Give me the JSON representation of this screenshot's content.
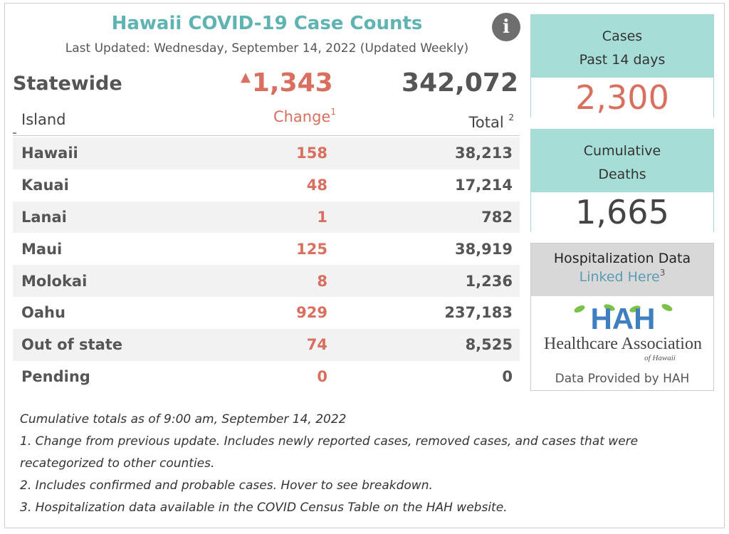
{
  "header": {
    "title": "Hawaii COVID-19 Case Counts",
    "subtitle": "Last Updated: Wednesday, September 14, 2022 (Updated Weekly)",
    "info_label": "i"
  },
  "statewide": {
    "label": "Statewide",
    "change": "1,343",
    "change_arrow": "▲",
    "total": "342,072"
  },
  "table": {
    "col_island": "Island",
    "col_change": "Change",
    "col_change_sup": "1",
    "col_total": "Total",
    "col_total_sup": "2",
    "rows": [
      {
        "name": "Hawaii",
        "change": "158",
        "total": "38,213"
      },
      {
        "name": "Kauai",
        "change": "48",
        "total": "17,214"
      },
      {
        "name": "Lanai",
        "change": "1",
        "total": "782"
      },
      {
        "name": "Maui",
        "change": "125",
        "total": "38,919"
      },
      {
        "name": "Molokai",
        "change": "8",
        "total": "1,236"
      },
      {
        "name": "Oahu",
        "change": "929",
        "total": "237,183"
      },
      {
        "name": "Out of state",
        "change": "74",
        "total": "8,525"
      },
      {
        "name": "Pending",
        "change": "0",
        "total": "0"
      }
    ]
  },
  "cards": {
    "cases_line1": "Cases",
    "cases_line2": "Past 14 days",
    "cases_value": "2,300",
    "deaths_line1": "Cumulative",
    "deaths_line2": "Deaths",
    "deaths_value": "1,665"
  },
  "hospitalization": {
    "title": "Hospitalization Data",
    "link": "Linked Here",
    "link_sup": "3",
    "logo_mark": "HAH",
    "logo_name": "Healthcare Association",
    "logo_sub": "of Hawaii",
    "provided": "Data Provided by HAH"
  },
  "notes": [
    "Cumulative totals as of 9:00 am, September 14, 2022",
    "1. Change from previous update. Includes newly reported cases, removed cases, and cases that were recategorized to other counties.",
    "2. Includes confirmed and probable cases. Hover to see breakdown.",
    "3. Hospitalization data available in the COVID Census Table on the HAH website."
  ],
  "colors": {
    "teal": "#5fb3b3",
    "coral": "#d96f5e",
    "card_head": "#a6ddd6",
    "logo_blue": "#3f7fc0",
    "logo_green": "#7cc24a"
  }
}
